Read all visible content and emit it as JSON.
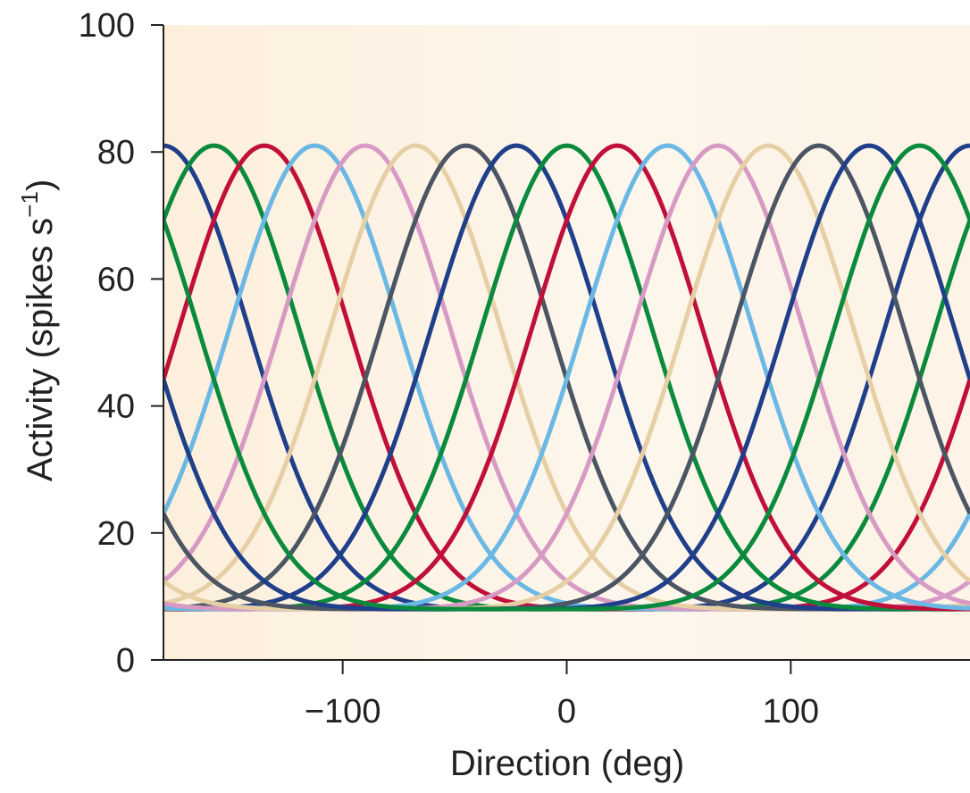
{
  "chart_data": {
    "type": "line",
    "title": "",
    "xlabel": "Direction (deg)",
    "ylabel": {
      "text": "Activity (spikes s",
      "superscript": "−1",
      "close": ")"
    },
    "xlim": [
      -180,
      180
    ],
    "ylim": [
      0,
      100
    ],
    "x_ticks": [
      -100,
      0,
      100
    ],
    "x_tick_labels": [
      "−100",
      "0",
      "100"
    ],
    "y_ticks": [
      0,
      20,
      40,
      60,
      80,
      100
    ],
    "y_tick_labels": [
      "0",
      "20",
      "40",
      "60",
      "80",
      "100"
    ],
    "grid": false,
    "legend": "none",
    "background_color": "#fdf2e3",
    "curve_model": {
      "baseline": 8,
      "peak": 81,
      "tuning_width_deg": 38
    },
    "series": [
      {
        "preferred_direction": -180,
        "color": "#1f3f8a"
      },
      {
        "preferred_direction": -157.5,
        "color": "#0a8a3c"
      },
      {
        "preferred_direction": -135,
        "color": "#c0103a"
      },
      {
        "preferred_direction": -112.5,
        "color": "#6ab8e3"
      },
      {
        "preferred_direction": -90,
        "color": "#d79ac4"
      },
      {
        "preferred_direction": -67.5,
        "color": "#e6cfa4"
      },
      {
        "preferred_direction": -45,
        "color": "#4b5563"
      },
      {
        "preferred_direction": -22.5,
        "color": "#1f3f8a"
      },
      {
        "preferred_direction": 0,
        "color": "#0a8a3c"
      },
      {
        "preferred_direction": 22.5,
        "color": "#c0103a"
      },
      {
        "preferred_direction": 45,
        "color": "#6ab8e3"
      },
      {
        "preferred_direction": 67.5,
        "color": "#d79ac4"
      },
      {
        "preferred_direction": 90,
        "color": "#e6cfa4"
      },
      {
        "preferred_direction": 112.5,
        "color": "#4b5563"
      },
      {
        "preferred_direction": 135,
        "color": "#1f3f8a"
      },
      {
        "preferred_direction": 157.5,
        "color": "#0a8a3c"
      }
    ]
  }
}
